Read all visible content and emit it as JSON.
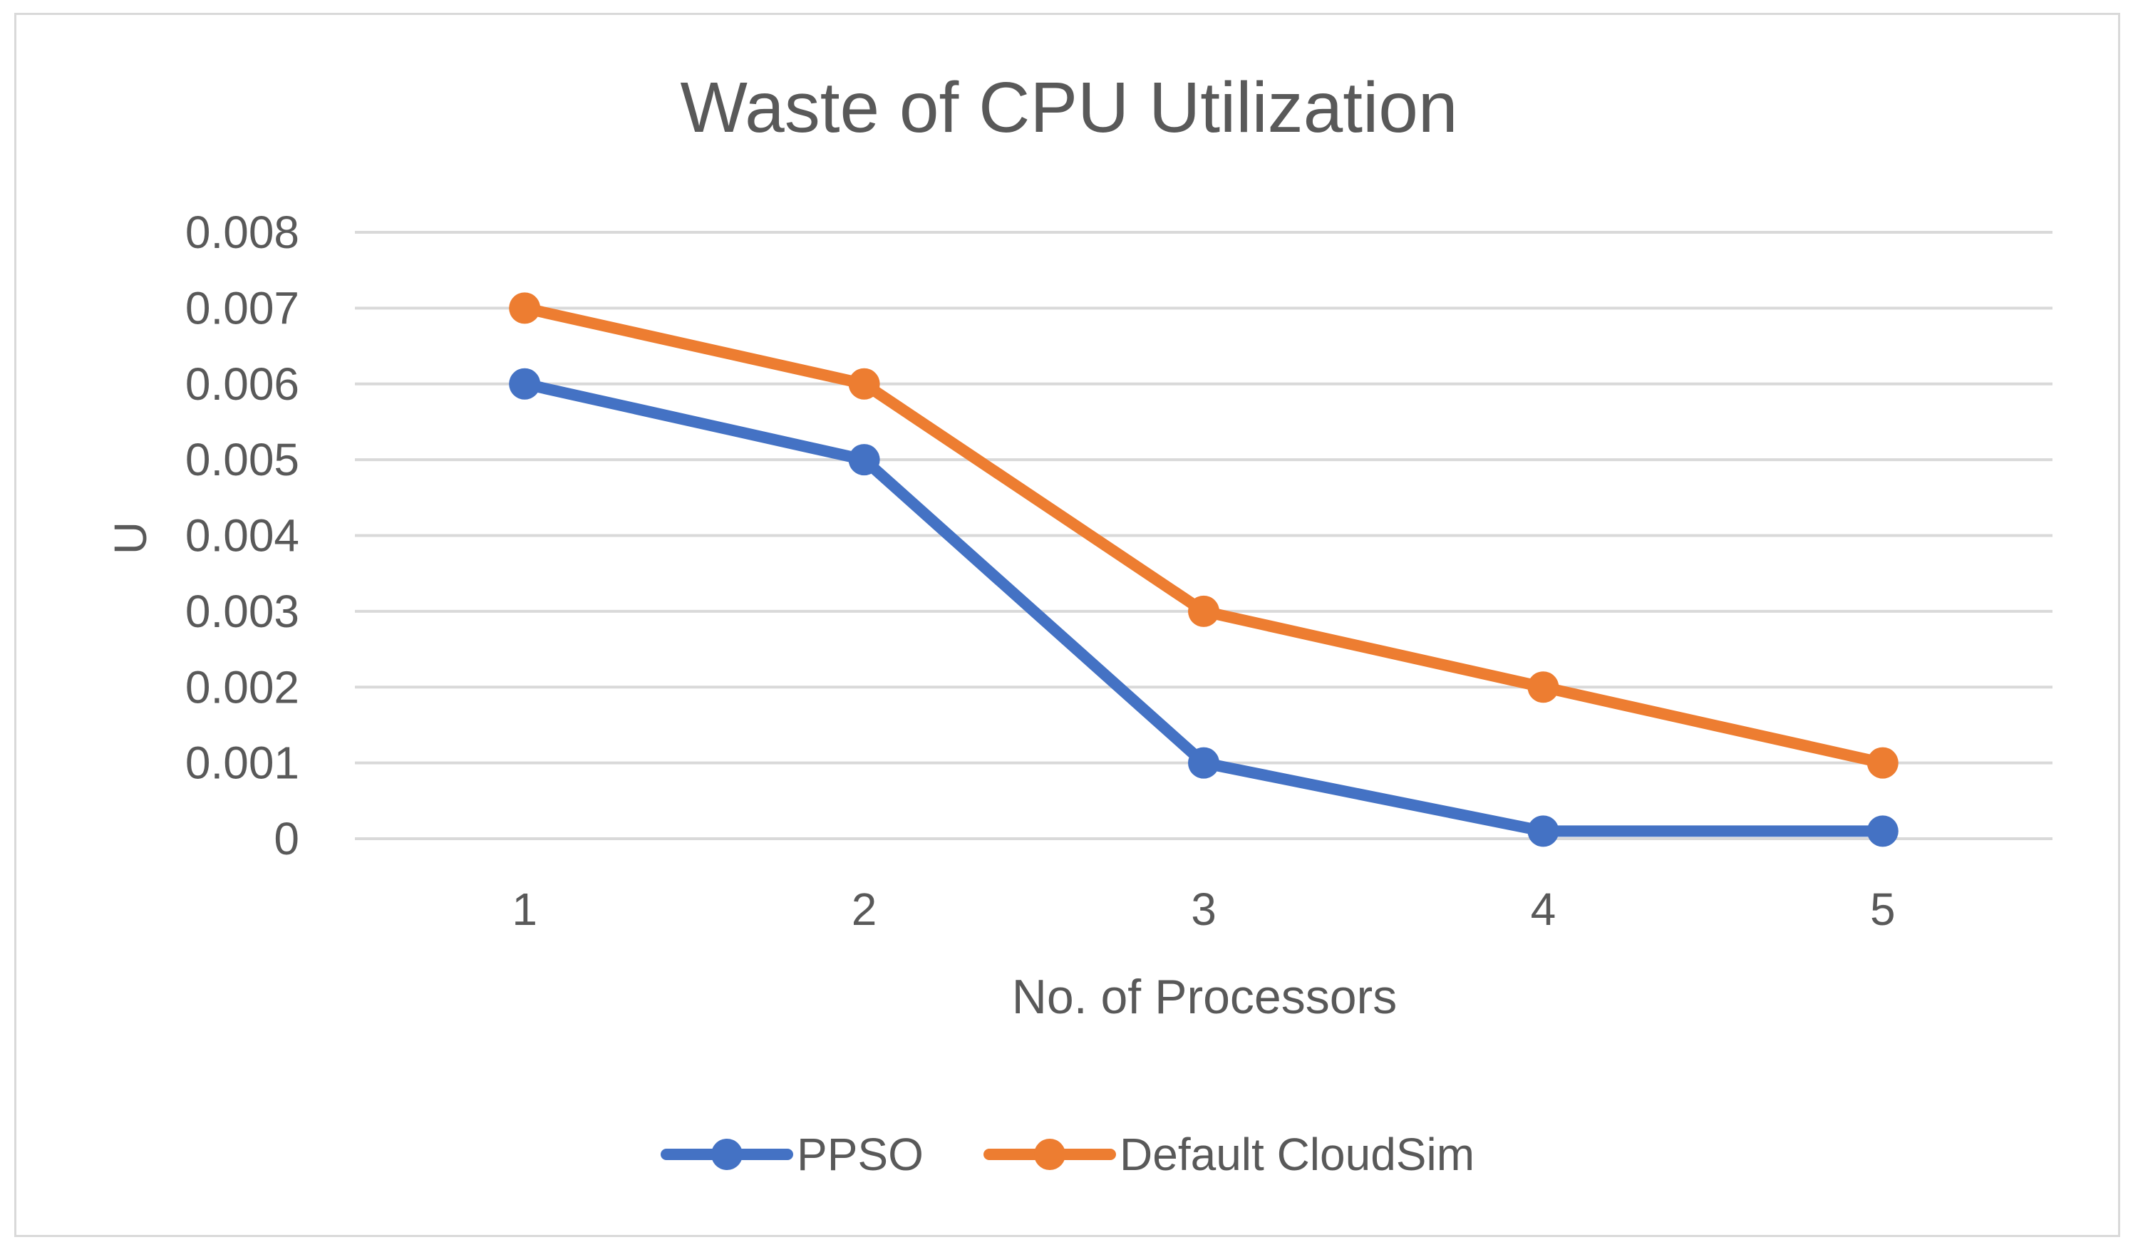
{
  "chart_data": {
    "type": "line",
    "title": "Waste of CPU Utilization",
    "xlabel": "No. of Processors",
    "ylabel": "U",
    "categories": [
      "1",
      "2",
      "3",
      "4",
      "5"
    ],
    "yticks": [
      "0",
      "0.001",
      "0.002",
      "0.003",
      "0.004",
      "0.005",
      "0.006",
      "0.007",
      "0.008"
    ],
    "ylim": [
      0,
      0.008
    ],
    "grid": true,
    "legend_position": "bottom",
    "series": [
      {
        "name": "PPSO",
        "color": "#4472c4",
        "values": [
          0.006,
          0.005,
          0.001,
          0.0001,
          0.0001
        ]
      },
      {
        "name": "Default CloudSim",
        "color": "#ed7d31",
        "values": [
          0.007,
          0.006,
          0.003,
          0.002,
          0.001
        ]
      }
    ]
  }
}
